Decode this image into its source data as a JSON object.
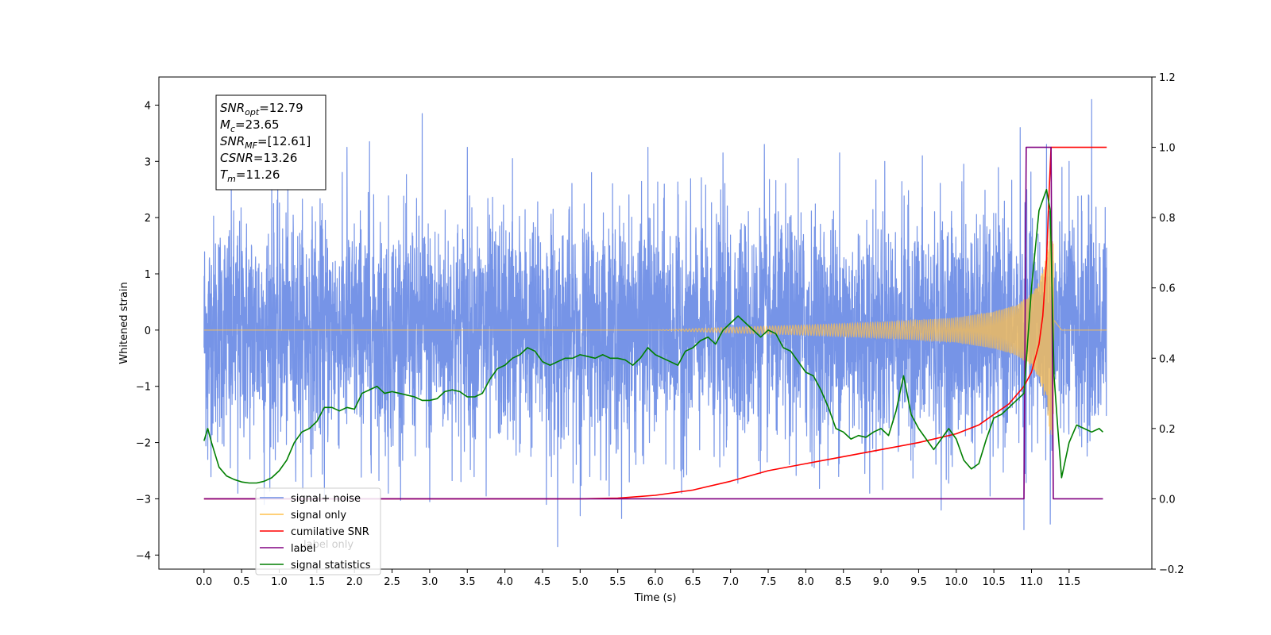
{
  "chart_data": {
    "type": "line",
    "xlabel": "Time (s)",
    "ylabel": "Whitened strain",
    "xlim": [
      -0.6,
      12.6
    ],
    "ylim_left": [
      -4.25,
      4.5
    ],
    "ylim_right": [
      -0.2,
      1.2
    ],
    "x_ticks": [
      0.0,
      0.5,
      1.0,
      1.5,
      2.0,
      2.5,
      3.0,
      3.5,
      4.0,
      4.5,
      5.0,
      5.5,
      6.0,
      6.5,
      7.0,
      7.5,
      8.0,
      8.5,
      9.0,
      9.5,
      10.0,
      10.5,
      11.0,
      11.5
    ],
    "x_tick_labels": [
      "0.0",
      "0.5",
      "1.0",
      "1.5",
      "2.0",
      "2.5",
      "3.0",
      "3.5",
      "4.0",
      "4.5",
      "5.0",
      "5.5",
      "6.0",
      "6.5",
      "7.0",
      "7.5",
      "8.0",
      "8.5",
      "9.0",
      "9.5",
      "10.0",
      "10.5",
      "11.0",
      "11.5"
    ],
    "y_left_ticks": [
      -4,
      -3,
      -2,
      -1,
      0,
      1,
      2,
      3,
      4
    ],
    "y_left_tick_labels": [
      "−4",
      "−3",
      "−2",
      "−1",
      "0",
      "1",
      "2",
      "3",
      "4"
    ],
    "y_right_ticks": [
      -0.2,
      0.0,
      0.2,
      0.4,
      0.6,
      0.8,
      1.0,
      1.2
    ],
    "y_right_tick_labels": [
      "−0.2",
      "0.0",
      "0.2",
      "0.4",
      "0.6",
      "0.8",
      "1.0",
      "1.2"
    ],
    "stats_box": {
      "lines": [
        {
          "sym": "SNR",
          "sub": "opt",
          "val": "=12.79"
        },
        {
          "sym": "M",
          "sub": "c",
          "val": "=23.65"
        },
        {
          "sym": "SNR",
          "sub": "MF",
          "val": "=[12.61]"
        },
        {
          "sym": "CSNR",
          "sub": "",
          "val": "=13.26"
        },
        {
          "sym": "T",
          "sub": "m",
          "val": "=11.26"
        }
      ]
    },
    "legend": {
      "placement": "lower-left",
      "entries": [
        {
          "label": "signal+ noise",
          "color": "#6f8ee6"
        },
        {
          "label": "signal only",
          "color": "#ffc04d"
        },
        {
          "label": "cumilative SNR",
          "color": "#ff0000"
        },
        {
          "label": "label",
          "color": "#800080"
        },
        {
          "label": "signal statistics",
          "color": "#007f00"
        }
      ],
      "hidden_label": "label only"
    },
    "series": [
      {
        "name": "signal+ noise",
        "axis": "left",
        "color": "#6f8ee6",
        "x_range": [
          0.0,
          12.0
        ],
        "approx_sigma": 1.0,
        "spikes": [
          [
            0.05,
            -2.3
          ],
          [
            0.35,
            -2.45
          ],
          [
            0.45,
            -2.9
          ],
          [
            0.8,
            -3.1
          ],
          [
            0.9,
            2.85
          ],
          [
            1.6,
            -2.95
          ],
          [
            1.9,
            3.25
          ],
          [
            2.2,
            3.35
          ],
          [
            2.45,
            -2.9
          ],
          [
            2.9,
            3.85
          ],
          [
            3.0,
            -3.05
          ],
          [
            3.5,
            3.25
          ],
          [
            3.75,
            -2.95
          ],
          [
            4.1,
            3.05
          ],
          [
            4.55,
            -3.1
          ],
          [
            4.7,
            -3.85
          ],
          [
            5.0,
            -3.3
          ],
          [
            5.15,
            2.8
          ],
          [
            5.55,
            -3.35
          ],
          [
            5.9,
            3.25
          ],
          [
            6.35,
            -2.9
          ],
          [
            6.9,
            3.15
          ],
          [
            7.45,
            3.3
          ],
          [
            7.9,
            3.05
          ],
          [
            8.45,
            3.15
          ],
          [
            8.85,
            -2.9
          ],
          [
            9.05,
            3.0
          ],
          [
            9.55,
            3.1
          ],
          [
            9.8,
            -3.2
          ],
          [
            10.1,
            2.95
          ],
          [
            10.45,
            -2.95
          ],
          [
            10.85,
            3.6
          ],
          [
            10.9,
            -3.55
          ],
          [
            11.2,
            3.3
          ],
          [
            11.25,
            -3.45
          ],
          [
            11.5,
            3.0
          ],
          [
            11.8,
            4.1
          ]
        ]
      },
      {
        "name": "signal only",
        "axis": "left",
        "color": "#ffc04d",
        "x": [
          0.0,
          6.0,
          7.0,
          8.0,
          9.0,
          10.0,
          10.5,
          10.8,
          11.0,
          11.1,
          11.2,
          11.26,
          11.3,
          11.4,
          12.0
        ],
        "amplitude": [
          0.0,
          0.0,
          0.05,
          0.09,
          0.14,
          0.22,
          0.33,
          0.45,
          0.65,
          0.85,
          1.3,
          2.1,
          1.4,
          0.0,
          0.0
        ]
      },
      {
        "name": "cumilative SNR",
        "axis": "right",
        "color": "#ff0000",
        "x": [
          0.0,
          5.0,
          5.5,
          6.0,
          6.5,
          7.0,
          7.5,
          8.0,
          8.5,
          9.0,
          9.5,
          10.0,
          10.3,
          10.5,
          10.7,
          10.9,
          11.0,
          11.1,
          11.15,
          11.2,
          11.23,
          11.26,
          11.3,
          12.0
        ],
        "y": [
          0.0,
          0.0,
          0.002,
          0.01,
          0.025,
          0.05,
          0.08,
          0.1,
          0.12,
          0.14,
          0.16,
          0.185,
          0.21,
          0.24,
          0.27,
          0.32,
          0.36,
          0.44,
          0.52,
          0.68,
          0.85,
          1.0,
          1.0,
          1.0
        ]
      },
      {
        "name": "label",
        "axis": "right",
        "color": "#800080",
        "x": [
          0.0,
          10.9,
          10.93,
          11.26,
          11.29,
          11.95
        ],
        "y": [
          0.0,
          0.0,
          1.0,
          1.0,
          0.0,
          0.0
        ]
      },
      {
        "name": "signal statistics",
        "axis": "right",
        "color": "#007f00",
        "x": [
          0.0,
          0.05,
          0.1,
          0.2,
          0.3,
          0.4,
          0.5,
          0.6,
          0.7,
          0.8,
          0.9,
          1.0,
          1.1,
          1.2,
          1.3,
          1.4,
          1.5,
          1.6,
          1.7,
          1.8,
          1.9,
          2.0,
          2.1,
          2.2,
          2.3,
          2.4,
          2.5,
          2.6,
          2.7,
          2.8,
          2.9,
          3.0,
          3.1,
          3.2,
          3.3,
          3.4,
          3.5,
          3.6,
          3.7,
          3.8,
          3.9,
          4.0,
          4.1,
          4.2,
          4.3,
          4.4,
          4.5,
          4.6,
          4.7,
          4.8,
          4.9,
          5.0,
          5.1,
          5.2,
          5.3,
          5.4,
          5.5,
          5.6,
          5.7,
          5.8,
          5.9,
          6.0,
          6.1,
          6.2,
          6.3,
          6.4,
          6.5,
          6.6,
          6.7,
          6.8,
          6.9,
          7.0,
          7.1,
          7.2,
          7.3,
          7.4,
          7.5,
          7.6,
          7.7,
          7.8,
          7.9,
          8.0,
          8.1,
          8.2,
          8.3,
          8.4,
          8.5,
          8.6,
          8.7,
          8.8,
          8.9,
          9.0,
          9.1,
          9.2,
          9.3,
          9.4,
          9.5,
          9.6,
          9.7,
          9.8,
          9.9,
          10.0,
          10.1,
          10.2,
          10.3,
          10.4,
          10.5,
          10.6,
          10.7,
          10.8,
          10.9,
          11.0,
          11.1,
          11.2,
          11.25,
          11.3,
          11.35,
          11.4,
          11.5,
          11.6,
          11.7,
          11.8,
          11.9,
          11.95
        ],
        "y": [
          0.165,
          0.2,
          0.16,
          0.09,
          0.065,
          0.055,
          0.048,
          0.045,
          0.045,
          0.05,
          0.06,
          0.08,
          0.11,
          0.16,
          0.19,
          0.2,
          0.22,
          0.26,
          0.26,
          0.25,
          0.26,
          0.255,
          0.3,
          0.31,
          0.32,
          0.3,
          0.305,
          0.3,
          0.295,
          0.29,
          0.28,
          0.28,
          0.285,
          0.305,
          0.31,
          0.305,
          0.29,
          0.29,
          0.3,
          0.34,
          0.37,
          0.38,
          0.4,
          0.41,
          0.43,
          0.42,
          0.39,
          0.38,
          0.39,
          0.4,
          0.4,
          0.41,
          0.405,
          0.4,
          0.41,
          0.4,
          0.4,
          0.395,
          0.38,
          0.4,
          0.43,
          0.41,
          0.4,
          0.39,
          0.38,
          0.42,
          0.43,
          0.45,
          0.46,
          0.44,
          0.48,
          0.5,
          0.52,
          0.5,
          0.48,
          0.46,
          0.48,
          0.47,
          0.43,
          0.42,
          0.39,
          0.36,
          0.35,
          0.31,
          0.26,
          0.2,
          0.19,
          0.17,
          0.18,
          0.175,
          0.19,
          0.2,
          0.18,
          0.25,
          0.35,
          0.24,
          0.2,
          0.17,
          0.14,
          0.17,
          0.2,
          0.17,
          0.11,
          0.085,
          0.1,
          0.17,
          0.23,
          0.24,
          0.26,
          0.28,
          0.3,
          0.6,
          0.82,
          0.88,
          0.82,
          0.35,
          0.2,
          0.06,
          0.16,
          0.21,
          0.2,
          0.19,
          0.2,
          0.19
        ]
      }
    ]
  }
}
